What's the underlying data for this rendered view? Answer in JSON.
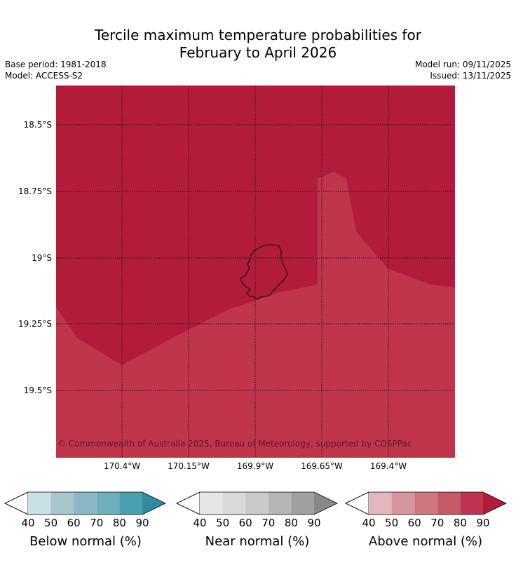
{
  "title_line1": "Tercile maximum temperature probabilities for",
  "title_line2": "February to April 2026",
  "meta_left": [
    "Base period: 1981-2018",
    "Model: ACCESS-S2"
  ],
  "meta_right": [
    "Model run: 09/11/2025",
    "Issued: 13/11/2025"
  ],
  "copyright": "© Commonwealth of Australia 2025, Bureau of Meteorology, supported by COSPPac",
  "lat_labels": [
    "18.5°S",
    "18.75°S",
    "19°S",
    "19.25°S",
    "19.5°S"
  ],
  "lon_labels": [
    "170.4°W",
    "170.15°W",
    "169.9°W",
    "169.65°W",
    "169.4°W"
  ],
  "colors": {
    "above_90": "#b21c3a",
    "above_80": "#c0344c"
  },
  "colorbars": [
    {
      "title": "Below normal (%)",
      "ticks": [
        "40",
        "50",
        "60",
        "70",
        "80",
        "90"
      ],
      "colors": [
        "#c8e1e7",
        "#a7c7cd",
        "#89b8c4",
        "#6eafbe",
        "#4a9fb0"
      ],
      "extend_color": "#2f8b9e"
    },
    {
      "title": "Near normal (%)",
      "ticks": [
        "40",
        "50",
        "60",
        "70",
        "80",
        "90"
      ],
      "colors": [
        "#e6e6e6",
        "#d9d9d9",
        "#c9c9c9",
        "#b5b5b5",
        "#a0a0a0"
      ],
      "extend_color": "#888888"
    },
    {
      "title": "Above normal (%)",
      "ticks": [
        "40",
        "50",
        "60",
        "70",
        "80",
        "90"
      ],
      "colors": [
        "#e2b8be",
        "#d6969f",
        "#ce7780",
        "#c65a68",
        "#bf3450"
      ],
      "extend_color": "#b21c3a"
    }
  ]
}
